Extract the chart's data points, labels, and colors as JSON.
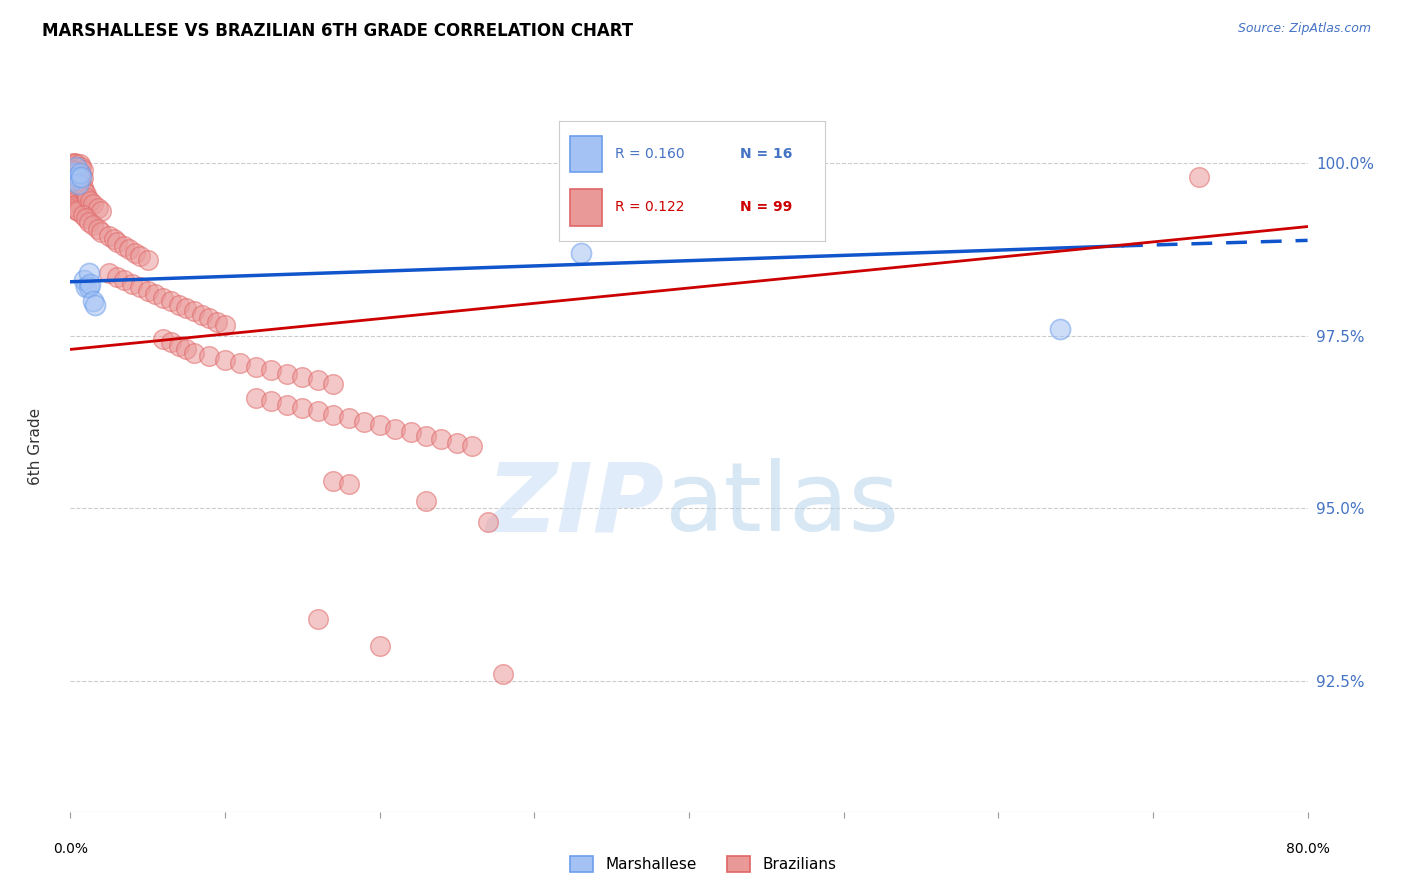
{
  "title": "MARSHALLESE VS BRAZILIAN 6TH GRADE CORRELATION CHART",
  "source": "Source: ZipAtlas.com",
  "ylabel": "6th Grade",
  "ytick_labels": [
    "92.5%",
    "95.0%",
    "97.5%",
    "100.0%"
  ],
  "ytick_values": [
    0.925,
    0.95,
    0.975,
    1.0
  ],
  "xmin": 0.0,
  "xmax": 0.8,
  "ymin": 0.906,
  "ymax": 1.012,
  "marshallese_color_fill": "#a4c2f4",
  "marshallese_color_edge": "#6d9eeb",
  "brazilian_color_fill": "#ea9999",
  "brazilian_color_edge": "#e06666",
  "trend_marshallese_color": "#1155cc",
  "trend_brazilian_color": "#cc0000",
  "marshallese_points": [
    [
      0.002,
      0.9985
    ],
    [
      0.002,
      0.9975
    ],
    [
      0.004,
      0.9995
    ],
    [
      0.005,
      0.998
    ],
    [
      0.005,
      0.997
    ],
    [
      0.006,
      0.9985
    ],
    [
      0.007,
      0.998
    ],
    [
      0.009,
      0.983
    ],
    [
      0.01,
      0.982
    ],
    [
      0.012,
      0.984
    ],
    [
      0.012,
      0.982
    ],
    [
      0.013,
      0.9825
    ],
    [
      0.015,
      0.98
    ],
    [
      0.016,
      0.9795
    ],
    [
      0.33,
      0.987
    ],
    [
      0.64,
      0.976
    ]
  ],
  "brazilian_points": [
    [
      0.002,
      1.0
    ],
    [
      0.003,
      1.0
    ],
    [
      0.004,
      0.9998
    ],
    [
      0.005,
      0.9995
    ],
    [
      0.006,
      0.9998
    ],
    [
      0.007,
      0.9995
    ],
    [
      0.008,
      0.999
    ],
    [
      0.002,
      0.999
    ],
    [
      0.003,
      0.9988
    ],
    [
      0.004,
      0.9985
    ],
    [
      0.005,
      0.9983
    ],
    [
      0.006,
      0.9985
    ],
    [
      0.007,
      0.9982
    ],
    [
      0.008,
      0.9978
    ],
    [
      0.002,
      0.9978
    ],
    [
      0.003,
      0.9975
    ],
    [
      0.004,
      0.9972
    ],
    [
      0.005,
      0.997
    ],
    [
      0.006,
      0.9968
    ],
    [
      0.002,
      0.9962
    ],
    [
      0.003,
      0.996
    ],
    [
      0.004,
      0.9958
    ],
    [
      0.005,
      0.9955
    ],
    [
      0.002,
      0.995
    ],
    [
      0.003,
      0.9948
    ],
    [
      0.004,
      0.9945
    ],
    [
      0.005,
      0.9942
    ],
    [
      0.002,
      0.9938
    ],
    [
      0.003,
      0.9935
    ],
    [
      0.004,
      0.9932
    ],
    [
      0.005,
      0.993
    ],
    [
      0.008,
      0.9965
    ],
    [
      0.009,
      0.996
    ],
    [
      0.01,
      0.9955
    ],
    [
      0.011,
      0.995
    ],
    [
      0.013,
      0.9945
    ],
    [
      0.015,
      0.994
    ],
    [
      0.018,
      0.9935
    ],
    [
      0.02,
      0.993
    ],
    [
      0.008,
      0.9925
    ],
    [
      0.01,
      0.992
    ],
    [
      0.012,
      0.9915
    ],
    [
      0.015,
      0.991
    ],
    [
      0.018,
      0.9905
    ],
    [
      0.02,
      0.99
    ],
    [
      0.025,
      0.9895
    ],
    [
      0.028,
      0.989
    ],
    [
      0.03,
      0.9885
    ],
    [
      0.035,
      0.988
    ],
    [
      0.038,
      0.9875
    ],
    [
      0.042,
      0.987
    ],
    [
      0.045,
      0.9865
    ],
    [
      0.05,
      0.986
    ],
    [
      0.025,
      0.984
    ],
    [
      0.03,
      0.9835
    ],
    [
      0.035,
      0.983
    ],
    [
      0.04,
      0.9825
    ],
    [
      0.045,
      0.982
    ],
    [
      0.05,
      0.9815
    ],
    [
      0.055,
      0.981
    ],
    [
      0.06,
      0.9805
    ],
    [
      0.065,
      0.98
    ],
    [
      0.07,
      0.9795
    ],
    [
      0.075,
      0.979
    ],
    [
      0.08,
      0.9785
    ],
    [
      0.085,
      0.978
    ],
    [
      0.09,
      0.9775
    ],
    [
      0.095,
      0.977
    ],
    [
      0.1,
      0.9765
    ],
    [
      0.06,
      0.9745
    ],
    [
      0.065,
      0.974
    ],
    [
      0.07,
      0.9735
    ],
    [
      0.075,
      0.973
    ],
    [
      0.08,
      0.9725
    ],
    [
      0.09,
      0.972
    ],
    [
      0.1,
      0.9715
    ],
    [
      0.11,
      0.971
    ],
    [
      0.12,
      0.9705
    ],
    [
      0.13,
      0.97
    ],
    [
      0.14,
      0.9695
    ],
    [
      0.15,
      0.969
    ],
    [
      0.16,
      0.9685
    ],
    [
      0.17,
      0.968
    ],
    [
      0.12,
      0.966
    ],
    [
      0.13,
      0.9655
    ],
    [
      0.14,
      0.965
    ],
    [
      0.15,
      0.9645
    ],
    [
      0.16,
      0.964
    ],
    [
      0.17,
      0.9635
    ],
    [
      0.18,
      0.963
    ],
    [
      0.19,
      0.9625
    ],
    [
      0.2,
      0.962
    ],
    [
      0.21,
      0.9615
    ],
    [
      0.22,
      0.961
    ],
    [
      0.23,
      0.9605
    ],
    [
      0.24,
      0.96
    ],
    [
      0.25,
      0.9595
    ],
    [
      0.26,
      0.959
    ],
    [
      0.17,
      0.954
    ],
    [
      0.18,
      0.9535
    ],
    [
      0.23,
      0.951
    ],
    [
      0.27,
      0.948
    ],
    [
      0.16,
      0.934
    ],
    [
      0.2,
      0.93
    ],
    [
      0.28,
      0.926
    ],
    [
      0.73,
      0.998
    ]
  ]
}
